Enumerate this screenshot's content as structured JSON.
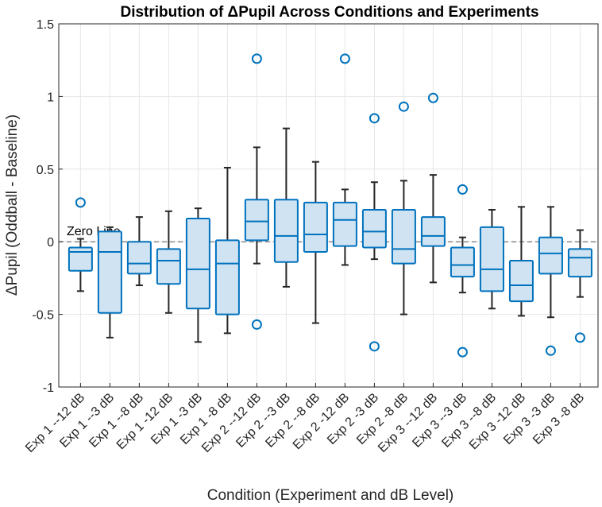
{
  "chart_data": {
    "type": "box",
    "title": "Distribution of ΔPupil Across Conditions and Experiments",
    "xlabel": "Condition (Experiment and dB Level)",
    "ylabel": "ΔPupil (Oddball - Baseline)",
    "ylim": [
      -1,
      1.5
    ],
    "yticks": [
      -1,
      -0.5,
      0,
      0.5,
      1,
      1.5
    ],
    "ytick_labels": [
      "-1",
      "-0.5",
      "0",
      "0.5",
      "1",
      "1.5"
    ],
    "grid": true,
    "reference_line": {
      "y": 0,
      "style": "dashed",
      "label": "Zero Line"
    },
    "colors": {
      "box_edge": "#0072BD",
      "box_fill": "#cfe3f2",
      "whisker": "#262626",
      "grid": "#e6e6e6",
      "ref_line": "#555555"
    },
    "categories": [
      "Exp 1 --12 dB",
      "Exp 1 --3 dB",
      "Exp 1 --8 dB",
      "Exp 1 -12 dB",
      "Exp 1 -3 dB",
      "Exp 1 -8 dB",
      "Exp 2 --12 dB",
      "Exp 2 --3 dB",
      "Exp 2 --8 dB",
      "Exp 2 -12 dB",
      "Exp 2 -3 dB",
      "Exp 2 -8 dB",
      "Exp 3 --12 dB",
      "Exp 3 --3 dB",
      "Exp 3 --8 dB",
      "Exp 3 -12 dB",
      "Exp 3 -3 dB",
      "Exp 3 -8 dB"
    ],
    "boxes": [
      {
        "whisker_low": -0.34,
        "q1": -0.2,
        "median": -0.07,
        "q3": -0.04,
        "whisker_high": 0.02,
        "outliers": [
          0.27
        ]
      },
      {
        "whisker_low": -0.66,
        "q1": -0.49,
        "median": -0.07,
        "q3": 0.07,
        "whisker_high": 0.1,
        "outliers": []
      },
      {
        "whisker_low": -0.3,
        "q1": -0.22,
        "median": -0.15,
        "q3": 0.0,
        "whisker_high": 0.17,
        "outliers": []
      },
      {
        "whisker_low": -0.49,
        "q1": -0.29,
        "median": -0.13,
        "q3": -0.05,
        "whisker_high": 0.21,
        "outliers": []
      },
      {
        "whisker_low": -0.69,
        "q1": -0.46,
        "median": -0.19,
        "q3": 0.16,
        "whisker_high": 0.23,
        "outliers": []
      },
      {
        "whisker_low": -0.63,
        "q1": -0.5,
        "median": -0.15,
        "q3": 0.01,
        "whisker_high": 0.51,
        "outliers": []
      },
      {
        "whisker_low": -0.15,
        "q1": 0.01,
        "median": 0.14,
        "q3": 0.29,
        "whisker_high": 0.65,
        "outliers": [
          1.26,
          -0.57
        ]
      },
      {
        "whisker_low": -0.31,
        "q1": -0.14,
        "median": 0.04,
        "q3": 0.29,
        "whisker_high": 0.78,
        "outliers": []
      },
      {
        "whisker_low": -0.56,
        "q1": -0.07,
        "median": 0.05,
        "q3": 0.27,
        "whisker_high": 0.55,
        "outliers": []
      },
      {
        "whisker_low": -0.16,
        "q1": -0.03,
        "median": 0.15,
        "q3": 0.27,
        "whisker_high": 0.36,
        "outliers": [
          1.26
        ]
      },
      {
        "whisker_low": -0.12,
        "q1": -0.04,
        "median": 0.07,
        "q3": 0.22,
        "whisker_high": 0.41,
        "outliers": [
          0.85,
          -0.72
        ]
      },
      {
        "whisker_low": -0.5,
        "q1": -0.15,
        "median": -0.05,
        "q3": 0.22,
        "whisker_high": 0.42,
        "outliers": [
          0.93
        ]
      },
      {
        "whisker_low": -0.28,
        "q1": -0.03,
        "median": 0.04,
        "q3": 0.17,
        "whisker_high": 0.46,
        "outliers": [
          0.99
        ]
      },
      {
        "whisker_low": -0.35,
        "q1": -0.24,
        "median": -0.16,
        "q3": -0.04,
        "whisker_high": 0.03,
        "outliers": [
          0.36,
          -0.76
        ]
      },
      {
        "whisker_low": -0.46,
        "q1": -0.34,
        "median": -0.19,
        "q3": 0.1,
        "whisker_high": 0.22,
        "outliers": []
      },
      {
        "whisker_low": -0.51,
        "q1": -0.41,
        "median": -0.3,
        "q3": -0.13,
        "whisker_high": 0.24,
        "outliers": []
      },
      {
        "whisker_low": -0.52,
        "q1": -0.22,
        "median": -0.08,
        "q3": 0.03,
        "whisker_high": 0.24,
        "outliers": [
          -0.75
        ]
      },
      {
        "whisker_low": -0.38,
        "q1": -0.24,
        "median": -0.11,
        "q3": -0.05,
        "whisker_high": 0.08,
        "outliers": [
          -0.66
        ]
      }
    ]
  }
}
